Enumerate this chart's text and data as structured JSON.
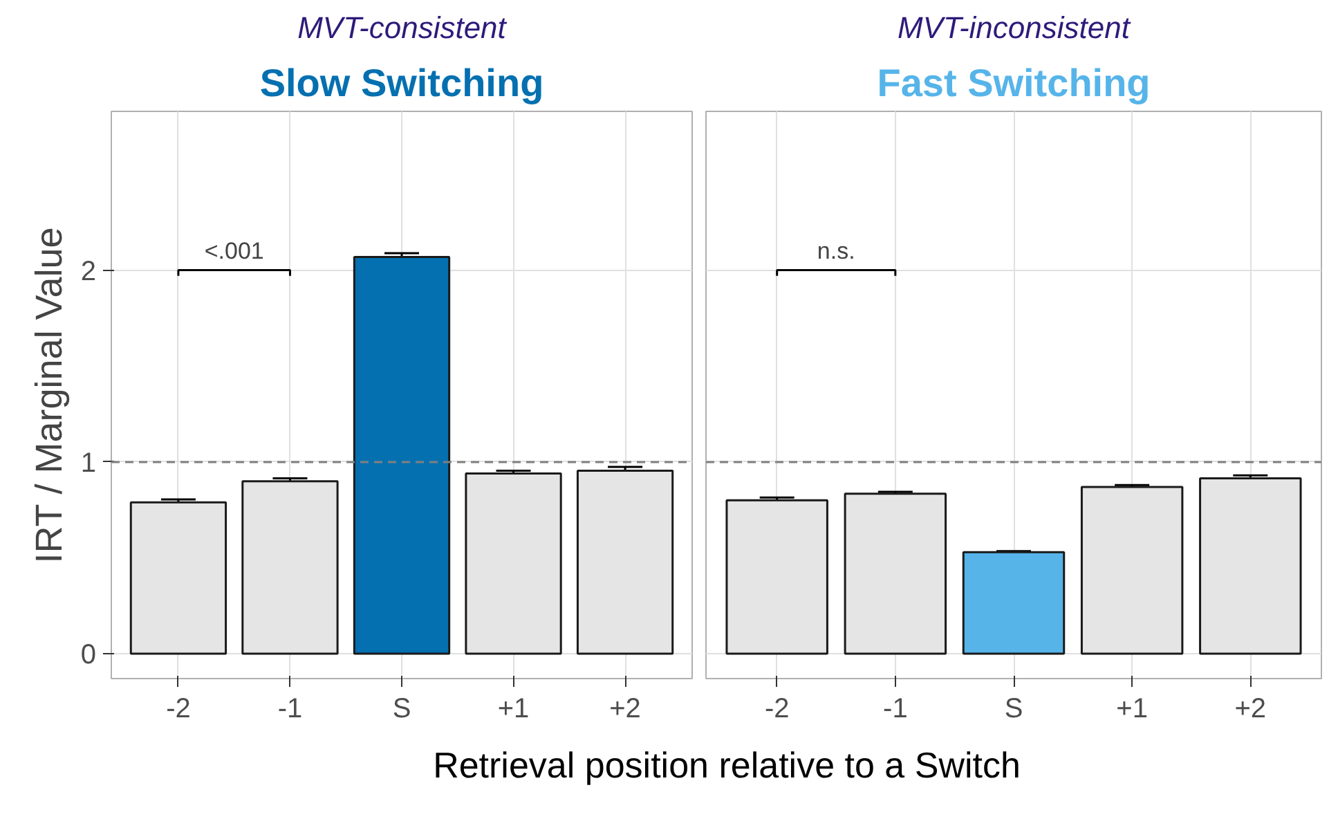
{
  "chart_data": [
    {
      "type": "bar",
      "subtitle": "MVT-consistent",
      "title": "Slow Switching",
      "ylabel": "IRT / Marginal Value",
      "xlabel": "Retrieval position relative to a Switch",
      "categories": [
        "-2",
        "-1",
        "S",
        "+1",
        "+2"
      ],
      "values": [
        0.79,
        0.9,
        2.07,
        0.94,
        0.955
      ],
      "errors": [
        0.015,
        0.015,
        0.02,
        0.015,
        0.02
      ],
      "colors": [
        "#e5e5e5",
        "#e5e5e5",
        "#0570b0",
        "#e5e5e5",
        "#e5e5e5"
      ],
      "ylim": [
        -0.13,
        2.83
      ],
      "yticks": [
        0,
        1,
        2
      ],
      "grid": true,
      "ref_lines": [
        {
          "axis": "y",
          "value": 1,
          "color": "#808080",
          "line_style": "dashed"
        }
      ],
      "annotations": [
        "<.001"
      ]
    },
    {
      "type": "bar",
      "subtitle": "MVT-inconsistent",
      "title": "Fast Switching",
      "categories": [
        "-2",
        "-1",
        "S",
        "+1",
        "+2"
      ],
      "values": [
        0.8,
        0.835,
        0.53,
        0.87,
        0.915
      ],
      "errors": [
        0.015,
        0.01,
        0.005,
        0.01,
        0.015
      ],
      "colors": [
        "#e5e5e5",
        "#e5e5e5",
        "#56b4e9",
        "#e5e5e5",
        "#e5e5e5"
      ],
      "ylim": [
        -0.13,
        2.83
      ],
      "yticks": [
        0,
        1,
        2
      ],
      "grid": true,
      "tick_labels": "x",
      "ref_lines": [
        {
          "axis": "y",
          "value": 1,
          "color": "#808080",
          "line_style": "dashed"
        }
      ],
      "annotations": [
        "n.s."
      ]
    }
  ]
}
